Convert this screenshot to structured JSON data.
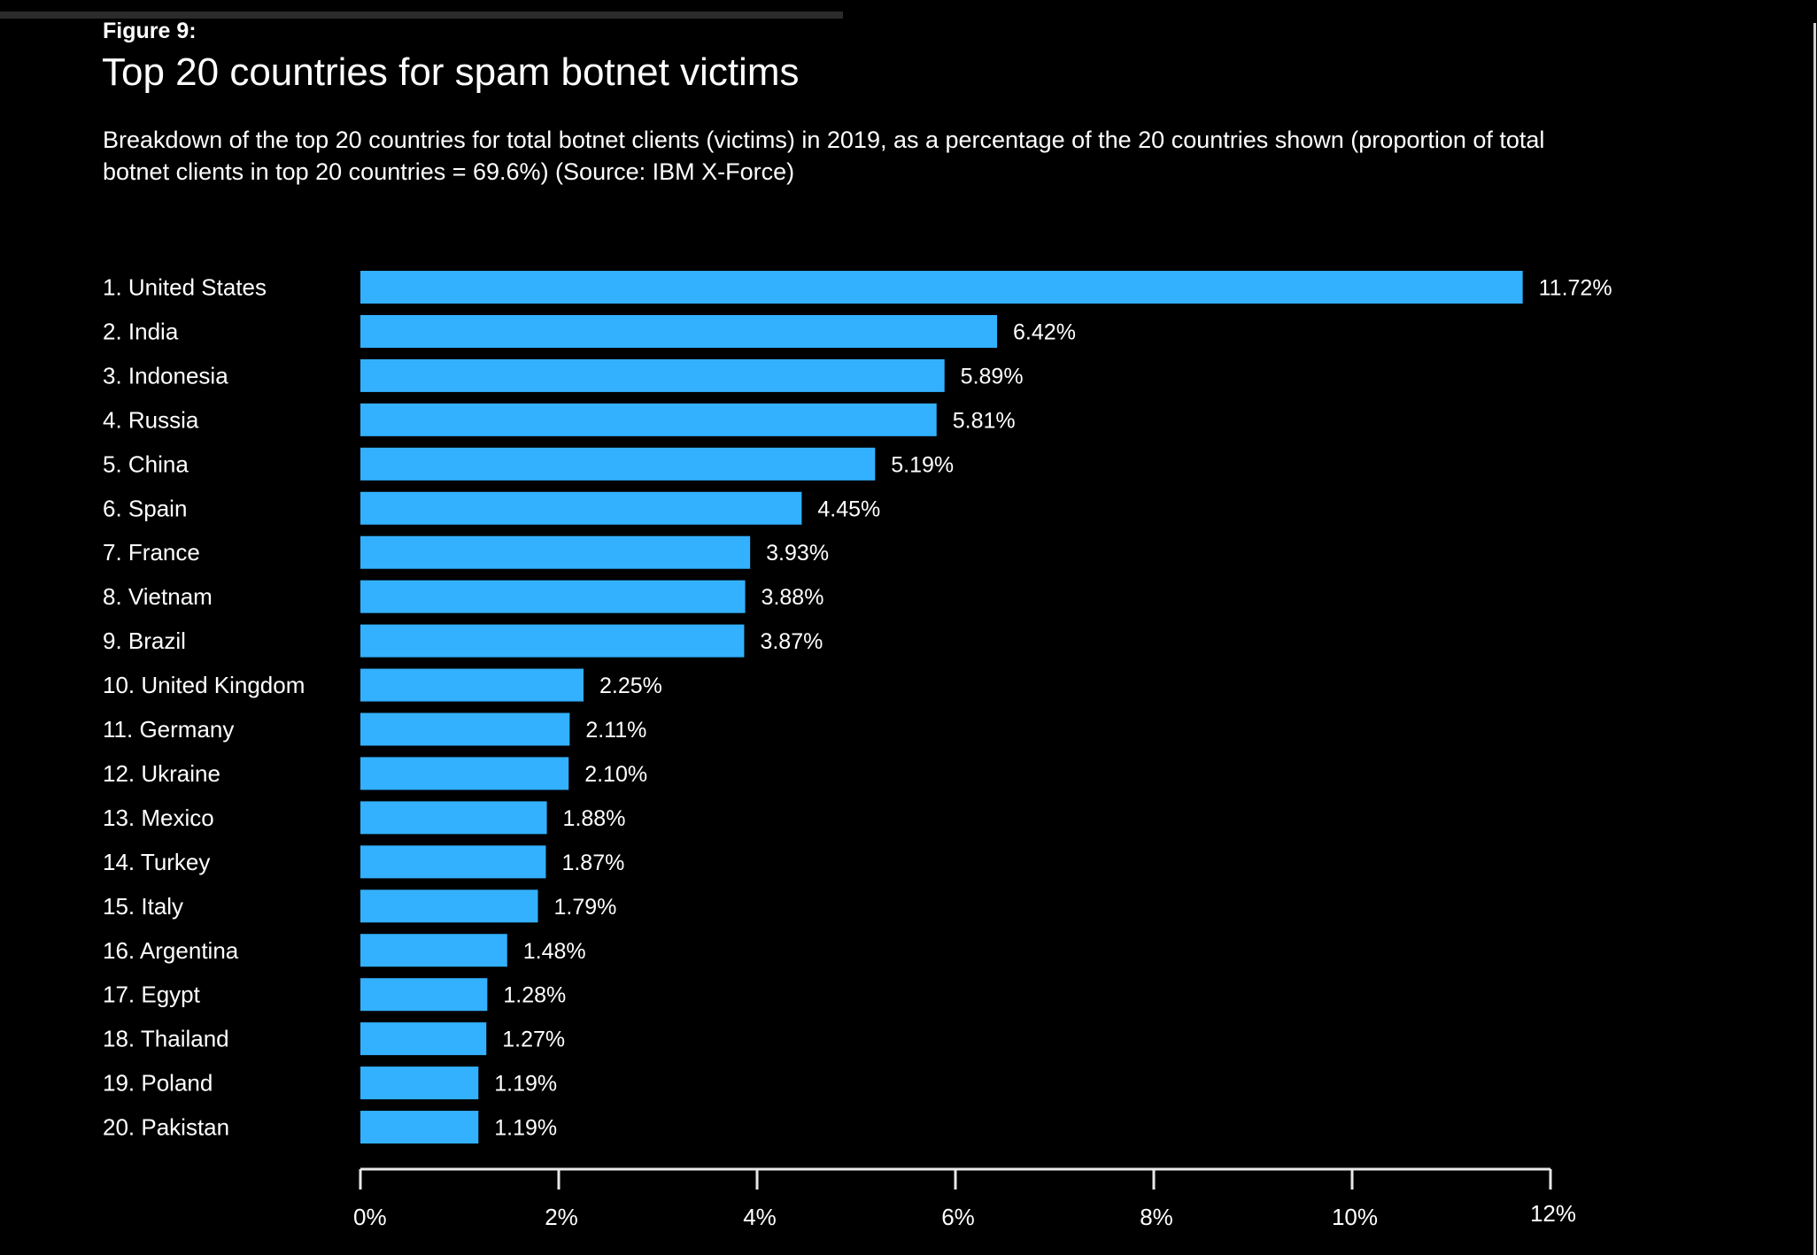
{
  "figure_label": "Figure 9:",
  "title": "Top 20 countries for spam botnet victims",
  "subtitle_lines": [
    "Breakdown of the top 20 countries for total botnet clients (victims) in 2019, as a percentage of the 20 countries shown (proportion of total",
    "botnet clients in top 20 countries = 69.6%) (Source: IBM X-Force)"
  ],
  "colors": {
    "background": "#000000",
    "bar": "#33b1ff",
    "text": "#ffffff",
    "axis": "#e8e8e8"
  },
  "chart_data": {
    "type": "bar",
    "orientation": "horizontal",
    "title": "Top 20 countries for spam botnet victims",
    "xlabel": "",
    "ylabel": "",
    "xlim": [
      0,
      12
    ],
    "grid": false,
    "categories": [
      "1. United States",
      "2. India",
      "3. Indonesia",
      "4. Russia",
      "5. China",
      "6. Spain",
      "7. France",
      "8. Vietnam",
      "9. Brazil",
      "10. United Kingdom",
      "11. Germany",
      "12. Ukraine",
      "13. Mexico",
      "14. Turkey",
      "15. Italy",
      "16. Argentina",
      "17. Egypt",
      "18. Thailand",
      "19. Poland",
      "20. Pakistan"
    ],
    "values": [
      11.72,
      6.42,
      5.89,
      5.81,
      5.19,
      4.45,
      3.93,
      3.88,
      3.87,
      2.25,
      2.11,
      2.1,
      1.88,
      1.87,
      1.79,
      1.48,
      1.28,
      1.27,
      1.19,
      1.19
    ],
    "value_labels": [
      "11.72%",
      "6.42%",
      "5.89%",
      "5.81%",
      "5.19%",
      "4.45%",
      "3.93%",
      "3.88%",
      "3.87%",
      "2.25%",
      "2.11%",
      "2.10%",
      "1.88%",
      "1.87%",
      "1.79%",
      "1.48%",
      "1.28%",
      "1.27%",
      "1.19%",
      "1.19%"
    ],
    "x_ticks": [
      0,
      2,
      4,
      6,
      8,
      10,
      12
    ],
    "x_tick_labels": [
      "0%",
      "2%",
      "4%",
      "6%",
      "8%",
      "10%",
      "12%"
    ],
    "legend": "none"
  }
}
